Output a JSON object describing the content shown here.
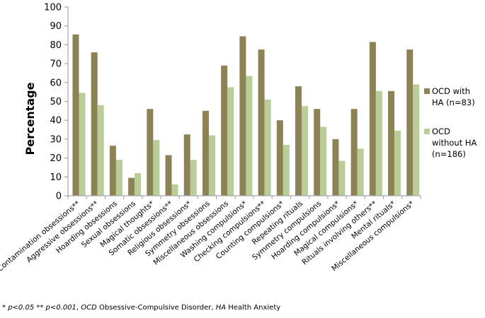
{
  "chart_data": {
    "type": "bar",
    "title": "",
    "xlabel": "",
    "ylabel": "Percentage",
    "ylim": [
      0,
      100
    ],
    "ytick_step": 10,
    "grid": false,
    "legend_position": "right",
    "x_label_rotation_deg": -40,
    "categories": [
      "Contamination obsessions**",
      "Aggressive obsessions**",
      "Hoarding obsessions",
      "Sexual obsessions",
      "Magical thoughts*",
      "Somatic obsessions**",
      "Religious obsessions*",
      "Symmetry obsessions",
      "Miscellaneous obsessions",
      "Washing compulsions*",
      "Checking compulsions**",
      "Counting compulsions*",
      "Repeating rituals",
      "Symmetry compulsions",
      "Hoarding compulsions*",
      "Magical compulsions*",
      "Rituals involving others**",
      "Mental rituals*",
      "Miscellaneous compulsions*"
    ],
    "series": [
      {
        "name": "OCD with HA (n=83)",
        "color": "#8C8254",
        "values": [
          85.5,
          76,
          26.5,
          9.5,
          46,
          21.5,
          32.5,
          45,
          69,
          84.5,
          77.5,
          40,
          58,
          46,
          30,
          46,
          81.5,
          55.5,
          77.5
        ]
      },
      {
        "name": "OCD without HA (n=186)",
        "color": "#B8CD97",
        "values": [
          54.5,
          48,
          19,
          12,
          29.5,
          6,
          19,
          32,
          57.5,
          63.5,
          51,
          27,
          47.5,
          36.5,
          18.5,
          25,
          55.5,
          34.5,
          59
        ]
      }
    ]
  },
  "legend": {
    "items": [
      {
        "lines": [
          "OCD with",
          "HA (n=83)"
        ],
        "color": "#8C8254"
      },
      {
        "lines": [
          "OCD",
          "without HA",
          "(n=186)"
        ],
        "color": "#B8CD97"
      }
    ]
  },
  "footnote": {
    "segments": [
      {
        "text": "* ",
        "italic": false
      },
      {
        "text": "p<0.05",
        "italic": true
      },
      {
        "text": " ** ",
        "italic": false
      },
      {
        "text": "p<0.001",
        "italic": true
      },
      {
        "text": ", ",
        "italic": false
      },
      {
        "text": "OCD",
        "italic": true
      },
      {
        "text": " Obsessive-Compulsive Disorder, ",
        "italic": false
      },
      {
        "text": "HA",
        "italic": true
      },
      {
        "text": " Health Anxiety",
        "italic": false
      }
    ]
  },
  "colors": {
    "axis": "#A6A6A6",
    "text": "#000000",
    "background": "#FFFFFF"
  }
}
